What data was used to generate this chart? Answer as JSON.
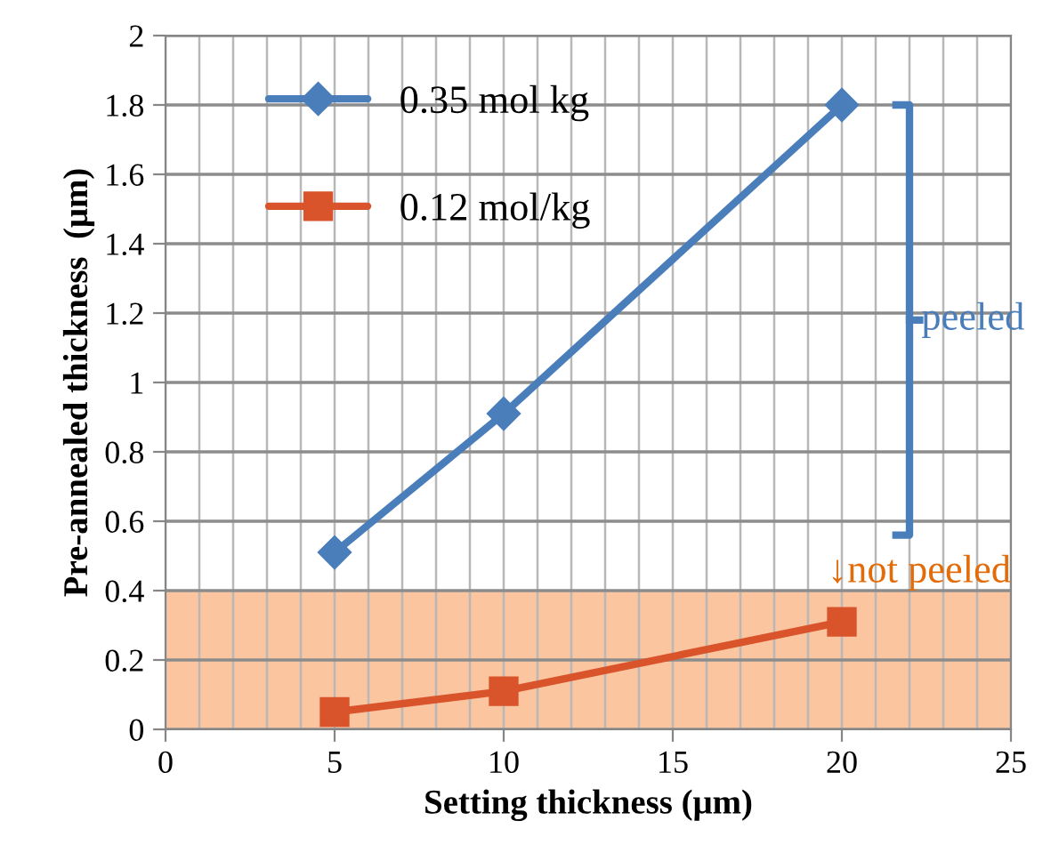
{
  "chart_data": {
    "type": "line",
    "xlabel": "Setting thickness (μm)",
    "ylabel": "Pre-annealed thickness  (μm)",
    "x": [
      5,
      10,
      20
    ],
    "series": [
      {
        "name": "0.35 mol kg",
        "color": "#4a7ebb",
        "marker": "diamond",
        "values": [
          0.51,
          0.91,
          1.8
        ]
      },
      {
        "name": "0.12 mol/kg",
        "color": "#d9532b",
        "marker": "square",
        "values": [
          0.05,
          0.11,
          0.31
        ]
      }
    ],
    "xlim": [
      0,
      25
    ],
    "xticks": [
      0,
      5,
      10,
      15,
      20,
      25
    ],
    "ylim": [
      0,
      2
    ],
    "yticks": [
      0,
      {
        "value": 0.2,
        "label": "0.2"
      },
      {
        "value": 0.4,
        "label": "0.4"
      },
      {
        "value": 0.6,
        "label": "0.6"
      },
      {
        "value": 0.8,
        "label": "0.8"
      },
      1,
      {
        "value": 1.2,
        "label": "1.2"
      },
      {
        "value": 1.4,
        "label": "1.4"
      },
      {
        "value": 1.6,
        "label": "1.6"
      },
      {
        "value": 1.8,
        "label": "1.8"
      },
      2
    ],
    "bands": [
      {
        "axis": "y",
        "from": 0,
        "to": 0.4,
        "label": "↓not peeled",
        "color": "#fbbf95"
      }
    ],
    "annotations": [
      "peeled"
    ],
    "grid": true,
    "legend": "top left",
    "line_style": "solid"
  }
}
